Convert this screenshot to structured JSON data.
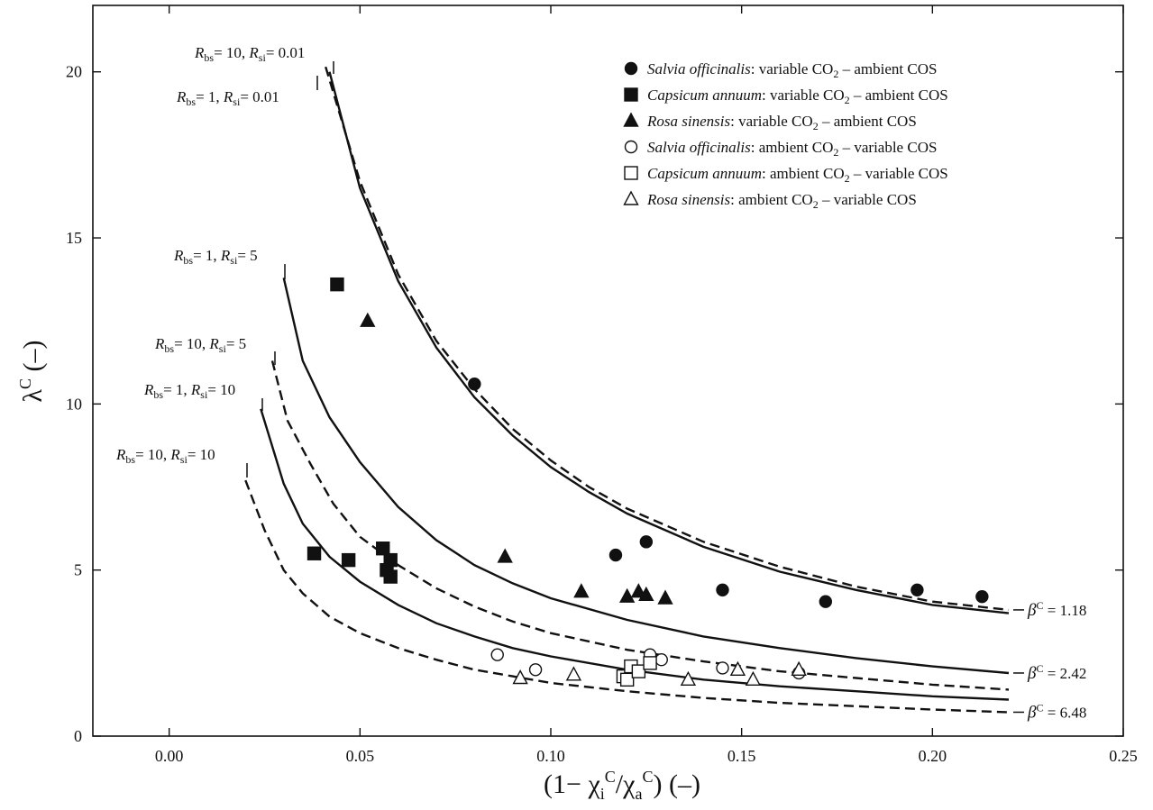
{
  "chart_data": {
    "type": "scatter",
    "xlim": [
      -0.02,
      0.25
    ],
    "ylim": [
      0,
      22
    ],
    "x_ticks": [
      0.0,
      0.05,
      0.1,
      0.15,
      0.2,
      0.25
    ],
    "x_tick_labels": [
      "0.00",
      "0.05",
      "0.10",
      "0.15",
      "0.20",
      "0.25"
    ],
    "y_ticks": [
      0,
      5,
      10,
      15,
      20
    ],
    "y_tick_labels": [
      "0",
      "5",
      "10",
      "15",
      "20"
    ],
    "xlabel": {
      "main": "(1− χ",
      "sub1": "i",
      "sup1": "C",
      "mid": "/χ",
      "sub2": "a",
      "sup2": "C",
      "tail": ") (–)"
    },
    "ylabel": {
      "main": "λ",
      "sup": "C",
      "tail": " (–)"
    },
    "legend_position": "top-right",
    "series": [
      {
        "name": "Salvia officinalis: variable CO2 – ambient COS",
        "marker": "circle",
        "filled": true,
        "points": [
          [
            0.08,
            10.6
          ],
          [
            0.117,
            5.45
          ],
          [
            0.125,
            5.85
          ],
          [
            0.145,
            4.4
          ],
          [
            0.172,
            4.05
          ],
          [
            0.196,
            4.4
          ],
          [
            0.213,
            4.2
          ]
        ]
      },
      {
        "name": "Capsicum annuum: variable CO2 – ambient COS",
        "marker": "square",
        "filled": true,
        "points": [
          [
            0.044,
            13.6
          ],
          [
            0.038,
            5.5
          ],
          [
            0.047,
            5.3
          ],
          [
            0.056,
            5.65
          ],
          [
            0.057,
            5.0
          ],
          [
            0.058,
            5.3
          ],
          [
            0.058,
            4.8
          ]
        ]
      },
      {
        "name": "Rosa sinensis: variable CO2 – ambient COS",
        "marker": "triangle",
        "filled": true,
        "points": [
          [
            0.052,
            12.5
          ],
          [
            0.088,
            5.4
          ],
          [
            0.108,
            4.35
          ],
          [
            0.12,
            4.2
          ],
          [
            0.123,
            4.35
          ],
          [
            0.125,
            4.25
          ],
          [
            0.13,
            4.15
          ]
        ]
      },
      {
        "name": "Salvia officinalis: ambient CO2 – variable COS",
        "marker": "circle",
        "filled": false,
        "points": [
          [
            0.086,
            2.45
          ],
          [
            0.096,
            2.0
          ],
          [
            0.126,
            2.45
          ],
          [
            0.129,
            2.3
          ],
          [
            0.145,
            2.05
          ],
          [
            0.165,
            1.9
          ]
        ]
      },
      {
        "name": "Capsicum annuum: ambient CO2 – variable COS",
        "marker": "square",
        "filled": false,
        "points": [
          [
            0.119,
            1.8
          ],
          [
            0.12,
            1.7
          ],
          [
            0.121,
            2.1
          ],
          [
            0.123,
            1.95
          ],
          [
            0.126,
            2.2
          ]
        ]
      },
      {
        "name": "Rosa sinensis: ambient CO2 – variable COS",
        "marker": "triangle",
        "filled": false,
        "points": [
          [
            0.092,
            1.75
          ],
          [
            0.106,
            1.85
          ],
          [
            0.136,
            1.7
          ],
          [
            0.149,
            2.0
          ],
          [
            0.153,
            1.7
          ],
          [
            0.165,
            2.0
          ]
        ]
      }
    ],
    "curves": [
      {
        "label": {
          "r1": "10",
          "r2": "0.01"
        },
        "dashed": true,
        "points": [
          [
            0.041,
            20.15
          ],
          [
            0.05,
            16.7
          ],
          [
            0.06,
            13.9
          ],
          [
            0.07,
            11.9
          ],
          [
            0.08,
            10.45
          ],
          [
            0.09,
            9.25
          ],
          [
            0.1,
            8.3
          ],
          [
            0.11,
            7.5
          ],
          [
            0.12,
            6.85
          ],
          [
            0.14,
            5.85
          ],
          [
            0.16,
            5.1
          ],
          [
            0.18,
            4.5
          ],
          [
            0.2,
            4.05
          ],
          [
            0.22,
            3.8
          ]
        ]
      },
      {
        "label": {
          "r1": "1",
          "r2": "0.01"
        },
        "dashed": false,
        "points": [
          [
            0.042,
            20.0
          ],
          [
            0.05,
            16.5
          ],
          [
            0.06,
            13.7
          ],
          [
            0.07,
            11.7
          ],
          [
            0.08,
            10.2
          ],
          [
            0.09,
            9.05
          ],
          [
            0.1,
            8.1
          ],
          [
            0.11,
            7.35
          ],
          [
            0.12,
            6.7
          ],
          [
            0.14,
            5.7
          ],
          [
            0.16,
            4.95
          ],
          [
            0.18,
            4.4
          ],
          [
            0.2,
            3.95
          ],
          [
            0.22,
            3.7
          ]
        ]
      },
      {
        "label": {
          "r1": "1",
          "r2": "5"
        },
        "dashed": false,
        "points": [
          [
            0.03,
            13.8
          ],
          [
            0.035,
            11.3
          ],
          [
            0.042,
            9.6
          ],
          [
            0.05,
            8.25
          ],
          [
            0.06,
            6.9
          ],
          [
            0.07,
            5.9
          ],
          [
            0.08,
            5.15
          ],
          [
            0.09,
            4.6
          ],
          [
            0.1,
            4.15
          ],
          [
            0.12,
            3.5
          ],
          [
            0.14,
            3.0
          ],
          [
            0.16,
            2.65
          ],
          [
            0.18,
            2.35
          ],
          [
            0.2,
            2.1
          ],
          [
            0.22,
            1.9
          ]
        ]
      },
      {
        "label": {
          "r1": "10",
          "r2": "5"
        },
        "dashed": true,
        "points": [
          [
            0.027,
            11.3
          ],
          [
            0.031,
            9.5
          ],
          [
            0.037,
            8.2
          ],
          [
            0.043,
            7.0
          ],
          [
            0.05,
            6.0
          ],
          [
            0.06,
            5.15
          ],
          [
            0.07,
            4.45
          ],
          [
            0.08,
            3.9
          ],
          [
            0.09,
            3.45
          ],
          [
            0.1,
            3.1
          ],
          [
            0.12,
            2.6
          ],
          [
            0.14,
            2.25
          ],
          [
            0.16,
            1.95
          ],
          [
            0.18,
            1.75
          ],
          [
            0.2,
            1.55
          ],
          [
            0.22,
            1.4
          ]
        ]
      },
      {
        "label": {
          "r1": "1",
          "r2": "10"
        },
        "dashed": false,
        "points": [
          [
            0.024,
            9.85
          ],
          [
            0.03,
            7.6
          ],
          [
            0.035,
            6.4
          ],
          [
            0.042,
            5.4
          ],
          [
            0.05,
            4.65
          ],
          [
            0.06,
            3.95
          ],
          [
            0.07,
            3.4
          ],
          [
            0.08,
            3.0
          ],
          [
            0.09,
            2.65
          ],
          [
            0.1,
            2.4
          ],
          [
            0.12,
            2.0
          ],
          [
            0.14,
            1.7
          ],
          [
            0.16,
            1.5
          ],
          [
            0.18,
            1.35
          ],
          [
            0.2,
            1.2
          ],
          [
            0.22,
            1.1
          ]
        ]
      },
      {
        "label": {
          "r1": "10",
          "r2": "10"
        },
        "dashed": true,
        "points": [
          [
            0.02,
            7.7
          ],
          [
            0.025,
            6.2
          ],
          [
            0.03,
            5.0
          ],
          [
            0.035,
            4.3
          ],
          [
            0.042,
            3.6
          ],
          [
            0.05,
            3.1
          ],
          [
            0.06,
            2.65
          ],
          [
            0.07,
            2.3
          ],
          [
            0.08,
            2.0
          ],
          [
            0.09,
            1.8
          ],
          [
            0.1,
            1.6
          ],
          [
            0.12,
            1.35
          ],
          [
            0.14,
            1.15
          ],
          [
            0.16,
            1.0
          ],
          [
            0.18,
            0.9
          ],
          [
            0.2,
            0.8
          ],
          [
            0.22,
            0.72
          ]
        ]
      }
    ],
    "beta_labels": [
      {
        "text": "1.18",
        "y": 3.8
      },
      {
        "text": "2.42",
        "y": 1.9
      },
      {
        "text": "6.48",
        "y": 0.72
      }
    ]
  }
}
